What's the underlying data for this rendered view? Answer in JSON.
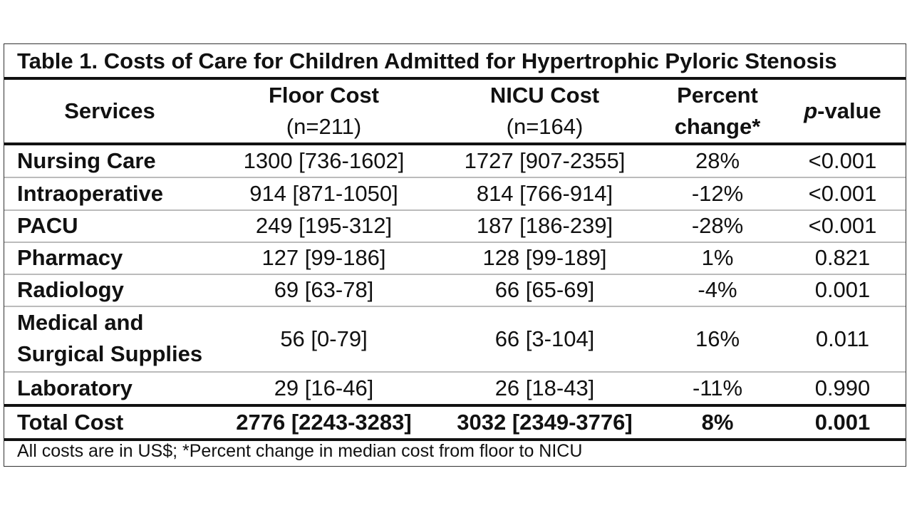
{
  "chart_data": {
    "type": "table",
    "title": "Table 1. Costs of Care for Children Admitted for Hypertrophic Pyloric Stenosis",
    "columns": [
      {
        "line1": "Services",
        "line2": ""
      },
      {
        "line1": "Floor Cost",
        "line2": "(n=211)"
      },
      {
        "line1": "NICU Cost",
        "line2": "(n=164)"
      },
      {
        "line1": "Percent",
        "line2": "change*"
      },
      {
        "line1_italic": "p",
        "line1_rest": "-value"
      }
    ],
    "rows": [
      {
        "service": "Nursing Care",
        "floor": "1300 [736-1602]",
        "nicu": "1727 [907-2355]",
        "pct": "28%",
        "p": "<0.001"
      },
      {
        "service": "Intraoperative",
        "floor": "914 [871-1050]",
        "nicu": "814 [766-914]",
        "pct": "-12%",
        "p": "<0.001"
      },
      {
        "service": "PACU",
        "floor": "249 [195-312]",
        "nicu": "187 [186-239]",
        "pct": "-28%",
        "p": "<0.001"
      },
      {
        "service": "Pharmacy",
        "floor": "127 [99-186]",
        "nicu": "128 [99-189]",
        "pct": "1%",
        "p": "0.821"
      },
      {
        "service": "Radiology",
        "floor": "69 [63-78]",
        "nicu": "66 [65-69]",
        "pct": "-4%",
        "p": "0.001"
      },
      {
        "service_line1": "Medical and",
        "service_line2": "Surgical Supplies",
        "floor": "56 [0-79]",
        "nicu": "66 [3-104]",
        "pct": "16%",
        "p": "0.011"
      },
      {
        "service": "Laboratory",
        "floor": "29 [16-46]",
        "nicu": "26 [18-43]",
        "pct": "-11%",
        "p": "0.990"
      }
    ],
    "total": {
      "service": "Total Cost",
      "floor": "2776 [2243-3283]",
      "nicu": "3032 [2349-3776]",
      "pct": "8%",
      "p": "0.001"
    },
    "footnote": "All costs are in US$; *Percent change in median cost from floor to NICU"
  }
}
